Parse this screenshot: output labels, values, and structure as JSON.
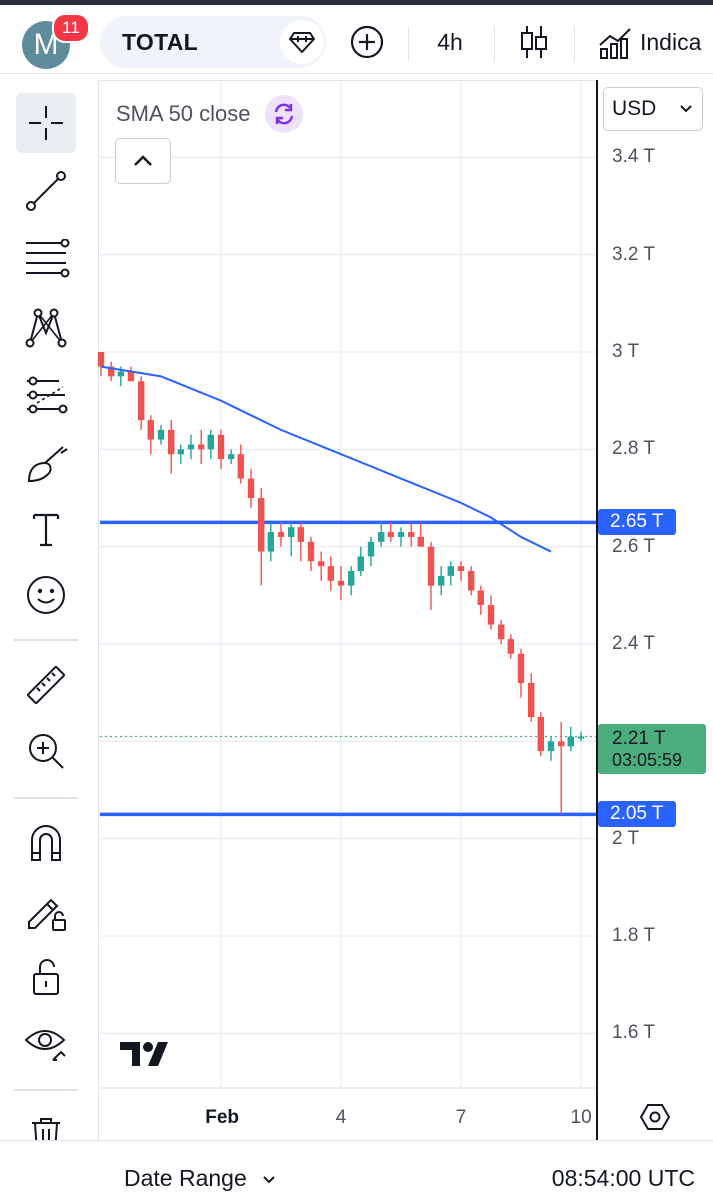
{
  "header": {
    "avatar_letter": "M",
    "notification_count": "11",
    "symbol": "TOTAL",
    "interval": "4h",
    "indicators_label": "Indica"
  },
  "sidebar": {
    "tools": [
      "crosshair-icon",
      "trend-line-icon",
      "fib-retracement-icon",
      "pattern-icon",
      "prediction-icon",
      "brush-icon",
      "text-icon",
      "emoji-icon",
      "ruler-icon",
      "zoom-in-icon",
      "magnet-icon",
      "lock-drawing-icon",
      "unlock-icon",
      "eye-icon",
      "trash-icon"
    ]
  },
  "legend": {
    "indicator": "SMA 50 close"
  },
  "currency": "USD",
  "chart_data": {
    "type": "candlestick",
    "symbol": "TOTAL",
    "timeframe": "4h",
    "y_unit": "T",
    "ylim": [
      1.5,
      3.45
    ],
    "yticks": [
      "3.4 T",
      "3.2 T",
      "3 T",
      "2.8 T",
      "2.6 T",
      "2.4 T",
      "2 T",
      "1.8 T",
      "1.6 T"
    ],
    "xticks": [
      "Feb",
      "4",
      "7",
      "10"
    ],
    "xlim_days": [
      -2.0,
      10.1
    ],
    "candles": [
      [
        -2.0,
        3.0,
        3.0,
        2.95,
        2.97
      ],
      [
        -1.83,
        2.97,
        2.98,
        2.94,
        2.95
      ],
      [
        -1.67,
        2.95,
        2.97,
        2.93,
        2.96
      ],
      [
        -1.5,
        2.96,
        2.97,
        2.94,
        2.94
      ],
      [
        -1.33,
        2.94,
        2.95,
        2.84,
        2.86
      ],
      [
        -1.17,
        2.86,
        2.87,
        2.79,
        2.82
      ],
      [
        -1.0,
        2.82,
        2.85,
        2.81,
        2.84
      ],
      [
        -0.83,
        2.84,
        2.86,
        2.75,
        2.79
      ],
      [
        -0.67,
        2.79,
        2.81,
        2.77,
        2.8
      ],
      [
        -0.5,
        2.8,
        2.83,
        2.78,
        2.81
      ],
      [
        -0.33,
        2.81,
        2.84,
        2.77,
        2.8
      ],
      [
        -0.17,
        2.8,
        2.84,
        2.78,
        2.83
      ],
      [
        0.0,
        2.83,
        2.84,
        2.76,
        2.78
      ],
      [
        0.17,
        2.78,
        2.8,
        2.77,
        2.79
      ],
      [
        0.33,
        2.79,
        2.81,
        2.73,
        2.74
      ],
      [
        0.5,
        2.74,
        2.76,
        2.68,
        2.7
      ],
      [
        0.67,
        2.7,
        2.72,
        2.52,
        2.59
      ],
      [
        0.83,
        2.59,
        2.65,
        2.57,
        2.63
      ],
      [
        1.0,
        2.63,
        2.65,
        2.6,
        2.62
      ],
      [
        1.17,
        2.62,
        2.65,
        2.58,
        2.64
      ],
      [
        1.33,
        2.64,
        2.65,
        2.57,
        2.61
      ],
      [
        1.5,
        2.61,
        2.62,
        2.55,
        2.57
      ],
      [
        1.67,
        2.57,
        2.59,
        2.53,
        2.56
      ],
      [
        1.83,
        2.56,
        2.58,
        2.51,
        2.53
      ],
      [
        2.0,
        2.53,
        2.56,
        2.49,
        2.52
      ],
      [
        2.17,
        2.52,
        2.56,
        2.5,
        2.55
      ],
      [
        2.33,
        2.55,
        2.6,
        2.54,
        2.58
      ],
      [
        2.5,
        2.58,
        2.62,
        2.56,
        2.61
      ],
      [
        2.67,
        2.61,
        2.65,
        2.6,
        2.63
      ],
      [
        2.83,
        2.63,
        2.65,
        2.61,
        2.62
      ],
      [
        3.0,
        2.62,
        2.64,
        2.6,
        2.63
      ],
      [
        3.17,
        2.63,
        2.65,
        2.6,
        2.62
      ],
      [
        3.33,
        2.62,
        2.65,
        2.6,
        2.6
      ],
      [
        3.5,
        2.6,
        2.61,
        2.47,
        2.52
      ],
      [
        3.67,
        2.52,
        2.56,
        2.5,
        2.54
      ],
      [
        3.83,
        2.54,
        2.57,
        2.52,
        2.56
      ],
      [
        4.0,
        2.56,
        2.57,
        2.53,
        2.55
      ],
      [
        4.17,
        2.55,
        2.56,
        2.5,
        2.51
      ],
      [
        4.33,
        2.51,
        2.52,
        2.46,
        2.48
      ],
      [
        4.5,
        2.48,
        2.5,
        2.43,
        2.44
      ],
      [
        4.67,
        2.44,
        2.45,
        2.4,
        2.41
      ],
      [
        4.83,
        2.41,
        2.42,
        2.37,
        2.38
      ],
      [
        5.0,
        2.38,
        2.39,
        2.29,
        2.32
      ],
      [
        5.17,
        2.32,
        2.34,
        2.24,
        2.25
      ],
      [
        5.33,
        2.25,
        2.26,
        2.17,
        2.18
      ],
      [
        5.5,
        2.18,
        2.21,
        2.16,
        2.2
      ],
      [
        5.67,
        2.2,
        2.24,
        2.05,
        2.19
      ],
      [
        5.83,
        2.19,
        2.23,
        2.18,
        2.21
      ],
      [
        6.0,
        2.21,
        2.22,
        2.2,
        2.21
      ]
    ],
    "sma50": [
      [
        -2.0,
        2.97
      ],
      [
        -1.0,
        2.95
      ],
      [
        0.0,
        2.9
      ],
      [
        1.0,
        2.84
      ],
      [
        2.0,
        2.79
      ],
      [
        3.0,
        2.74
      ],
      [
        4.0,
        2.69
      ],
      [
        4.5,
        2.66
      ],
      [
        5.0,
        2.62
      ],
      [
        5.5,
        2.59
      ]
    ],
    "horizontal_lines": [
      {
        "value": 2.65,
        "label": "2.65 T",
        "color": "#2962ff"
      },
      {
        "value": 2.05,
        "label": "2.05 T",
        "color": "#2962ff"
      }
    ],
    "last_price": {
      "value": 2.21,
      "label": "2.21 T",
      "countdown": "03:05:59",
      "color": "#4cae7c"
    },
    "colors": {
      "up": "#26a69a",
      "down": "#ef5350",
      "sma": "#2962ff"
    }
  },
  "footer": {
    "date_range_label": "Date Range",
    "clock": "08:54:00 UTC"
  }
}
